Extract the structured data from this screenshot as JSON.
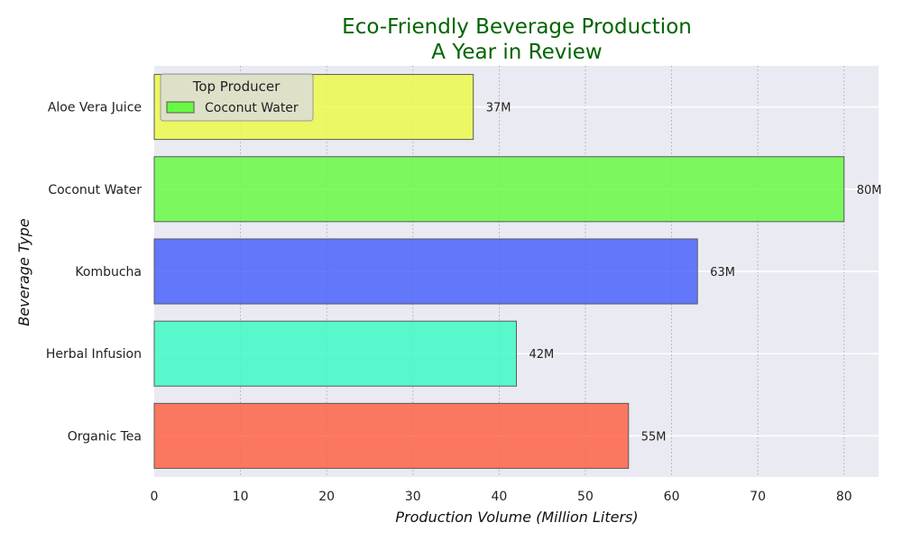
{
  "chart_data": {
    "type": "bar",
    "orientation": "horizontal",
    "title": [
      "Eco-Friendly Beverage Production",
      "A Year in Review"
    ],
    "xlabel": "Production Volume (Million Liters)",
    "ylabel": "Beverage Type",
    "categories": [
      "Organic Tea",
      "Herbal Infusion",
      "Kombucha",
      "Coconut Water",
      "Aloe Vera Juice"
    ],
    "values": [
      55,
      42,
      63,
      80,
      37
    ],
    "data_labels": [
      "55M",
      "42M",
      "63M",
      "80M",
      "37M"
    ],
    "colors": [
      "#FF6347",
      "#40F9C6",
      "#4A63FB",
      "#66FA44",
      "#EBFA4A"
    ],
    "xlim": [
      0,
      84
    ],
    "xticks": [
      0,
      10,
      20,
      30,
      40,
      50,
      60,
      70,
      80
    ],
    "grid": true,
    "legend": {
      "title": "Top Producer",
      "entries": [
        {
          "label": "Coconut Water",
          "color": "#66FA44"
        }
      ],
      "placement": "top-left"
    },
    "title_color": "#006400",
    "background_color": "#EAEAF2"
  }
}
